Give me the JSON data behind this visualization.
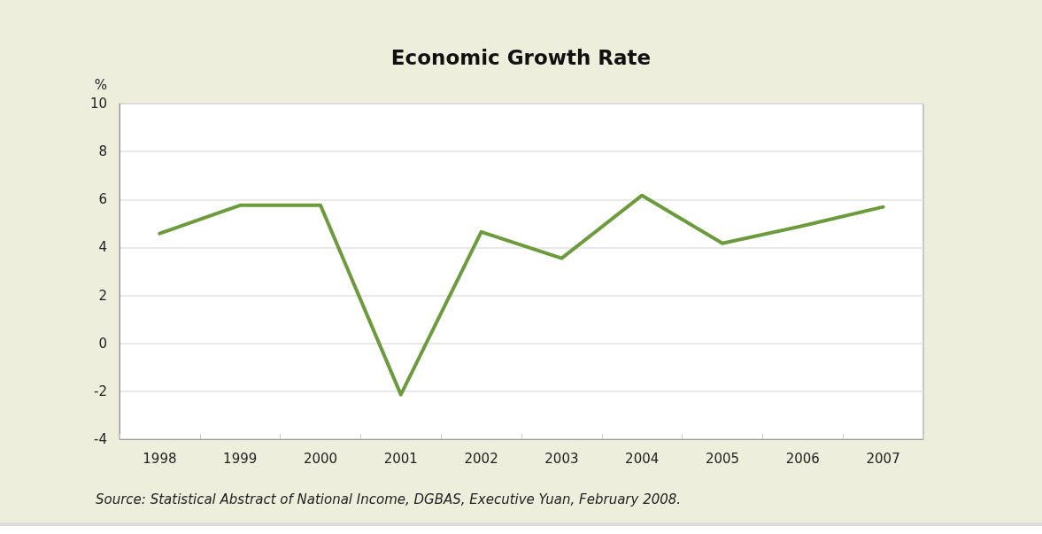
{
  "chart_data": {
    "type": "line",
    "title": "Economic Growth Rate",
    "ylabel": "%",
    "categories": [
      "1998",
      "1999",
      "2000",
      "2001",
      "2002",
      "2003",
      "2004",
      "2005",
      "2006",
      "2007"
    ],
    "series": [
      {
        "color": "#6b9b3d",
        "values": [
          4.58,
          5.76,
          5.76,
          -2.14,
          4.65,
          3.55,
          6.17,
          4.17,
          4.9,
          5.69
        ]
      }
    ],
    "ylim": [
      -4,
      10
    ],
    "yticks": [
      -4,
      -2,
      0,
      2,
      4,
      6,
      8,
      10
    ],
    "grid": "y",
    "marker": "none",
    "line_style": "solid",
    "annotations": [
      "Source: Statistical Abstract of National Income, DGBAS, Executive Yuan, February 2008."
    ]
  }
}
